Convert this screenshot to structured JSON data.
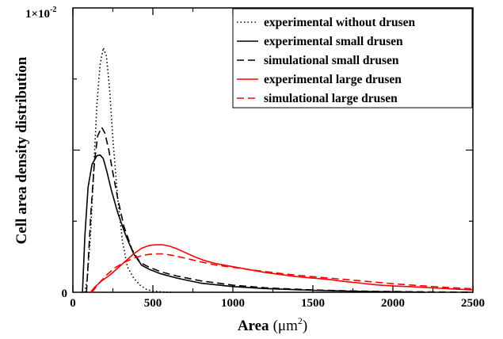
{
  "chart_data": {
    "type": "line",
    "xlabel": {
      "main": "Area",
      "unit_prefix": "(μm",
      "unit_exp": "2",
      "unit_suffix": ")"
    },
    "ylabel": "Cell area density distribution",
    "y_scale": {
      "base": "1×10",
      "exp": "-2"
    },
    "xlim": [
      0,
      2500
    ],
    "ylim": [
      0,
      0.01
    ],
    "x_ticks": [
      "0",
      "500",
      "1000",
      "1500",
      "2000",
      "2500"
    ],
    "y_tick_zero": "0",
    "legend_position": "top-right",
    "series": [
      {
        "name": "experimental without drusen",
        "color": "#000000",
        "dash": "dotted",
        "points": [
          [
            75,
            0
          ],
          [
            90,
            0.0005
          ],
          [
            110,
            0.002
          ],
          [
            130,
            0.0043
          ],
          [
            150,
            0.0066
          ],
          [
            170,
            0.008
          ],
          [
            190,
            0.0086
          ],
          [
            210,
            0.0083
          ],
          [
            230,
            0.0071
          ],
          [
            250,
            0.0054
          ],
          [
            280,
            0.0033
          ],
          [
            310,
            0.0018
          ],
          [
            340,
            0.0009
          ],
          [
            380,
            0.0005
          ],
          [
            420,
            0.00025
          ],
          [
            460,
            0.0001
          ],
          [
            500,
            4e-05
          ],
          [
            560,
            1e-05
          ],
          [
            620,
            0
          ]
        ]
      },
      {
        "name": "experimental small drusen",
        "color": "#000000",
        "dash": "solid",
        "points": [
          [
            60,
            0
          ],
          [
            75,
            0.002
          ],
          [
            95,
            0.0037
          ],
          [
            120,
            0.0045
          ],
          [
            150,
            0.0048
          ],
          [
            170,
            0.00483
          ],
          [
            190,
            0.0047
          ],
          [
            210,
            0.0043
          ],
          [
            240,
            0.0036
          ],
          [
            280,
            0.0028
          ],
          [
            330,
            0.002
          ],
          [
            380,
            0.00135
          ],
          [
            430,
            0.00095
          ],
          [
            480,
            0.0008
          ],
          [
            550,
            0.00065
          ],
          [
            650,
            0.0005
          ],
          [
            800,
            0.00032
          ],
          [
            1000,
            0.0002
          ],
          [
            1200,
            0.00013
          ],
          [
            1500,
            7e-05
          ],
          [
            1800,
            3e-05
          ],
          [
            2100,
            1e-05
          ],
          [
            2200,
            0
          ]
        ]
      },
      {
        "name": "simulational small drusen",
        "color": "#000000",
        "dash": "dashed",
        "points": [
          [
            85,
            0
          ],
          [
            100,
            0.0015
          ],
          [
            115,
            0.003
          ],
          [
            135,
            0.0046
          ],
          [
            155,
            0.0055
          ],
          [
            180,
            0.0058
          ],
          [
            200,
            0.0056
          ],
          [
            225,
            0.005
          ],
          [
            250,
            0.0042
          ],
          [
            280,
            0.0033
          ],
          [
            320,
            0.0023
          ],
          [
            370,
            0.0015
          ],
          [
            420,
            0.00105
          ],
          [
            470,
            0.0009
          ],
          [
            550,
            0.00072
          ],
          [
            650,
            0.00057
          ],
          [
            800,
            0.0004
          ],
          [
            1000,
            0.00025
          ],
          [
            1200,
            0.00016
          ],
          [
            1500,
            8e-05
          ],
          [
            1800,
            4e-05
          ],
          [
            2100,
            2e-05
          ],
          [
            2500,
            0
          ]
        ]
      },
      {
        "name": "experimental large drusen",
        "color": "#ff0000",
        "dash": "solid",
        "points": [
          [
            110,
            0
          ],
          [
            140,
            0.0002
          ],
          [
            180,
            0.0004
          ],
          [
            230,
            0.0006
          ],
          [
            280,
            0.00085
          ],
          [
            330,
            0.0011
          ],
          [
            380,
            0.00135
          ],
          [
            430,
            0.00155
          ],
          [
            480,
            0.00165
          ],
          [
            520,
            0.00167
          ],
          [
            560,
            0.00167
          ],
          [
            600,
            0.00163
          ],
          [
            650,
            0.00153
          ],
          [
            700,
            0.0014
          ],
          [
            760,
            0.00125
          ],
          [
            820,
            0.00112
          ],
          [
            900,
            0.001
          ],
          [
            1000,
            0.0009
          ],
          [
            1100,
            0.0008
          ],
          [
            1200,
            0.0007
          ],
          [
            1300,
            0.00062
          ],
          [
            1400,
            0.00055
          ],
          [
            1500,
            0.0005
          ],
          [
            1600,
            0.00045
          ],
          [
            1700,
            0.00038
          ],
          [
            1800,
            0.00032
          ],
          [
            1900,
            0.00026
          ],
          [
            2000,
            0.00022
          ],
          [
            2100,
            0.0002
          ],
          [
            2200,
            0.00017
          ],
          [
            2300,
            0.00014
          ],
          [
            2400,
            0.00011
          ],
          [
            2500,
            8e-05
          ]
        ]
      },
      {
        "name": "simulational large drusen",
        "color": "#ff0000",
        "dash": "dashed",
        "points": [
          [
            120,
            0
          ],
          [
            160,
            0.0003
          ],
          [
            210,
            0.0006
          ],
          [
            260,
            0.00085
          ],
          [
            320,
            0.00105
          ],
          [
            380,
            0.0012
          ],
          [
            440,
            0.0013
          ],
          [
            500,
            0.00135
          ],
          [
            560,
            0.00135
          ],
          [
            620,
            0.0013
          ],
          [
            700,
            0.0012
          ],
          [
            800,
            0.00107
          ],
          [
            900,
            0.00095
          ],
          [
            1000,
            0.00088
          ],
          [
            1100,
            0.0008
          ],
          [
            1200,
            0.00073
          ],
          [
            1300,
            0.00066
          ],
          [
            1400,
            0.0006
          ],
          [
            1500,
            0.00055
          ],
          [
            1600,
            0.0005
          ],
          [
            1700,
            0.00045
          ],
          [
            1800,
            0.0004
          ],
          [
            1900,
            0.00035
          ],
          [
            2000,
            0.0003
          ],
          [
            2100,
            0.00026
          ],
          [
            2200,
            0.00022
          ],
          [
            2300,
            0.00018
          ],
          [
            2400,
            0.00015
          ],
          [
            2500,
            0.00012
          ]
        ]
      }
    ]
  }
}
